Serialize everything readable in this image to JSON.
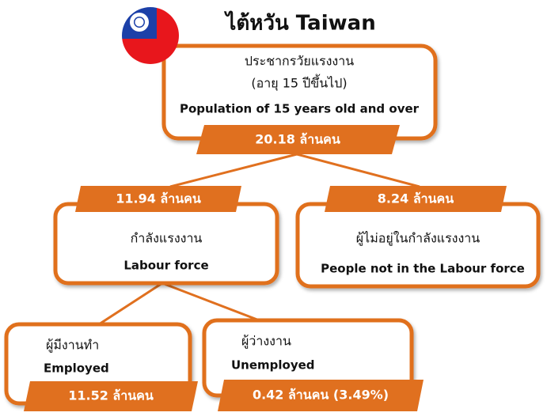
{
  "title": "ไต้หวัน Taiwan",
  "nodes": [
    {
      "th": "ประชากรวัยแรงงาน",
      "sub": "(อายุ 15 ปีขึ้นไป)",
      "en": "Population of 15 years old and over",
      "value": "20.18 ล้านคน"
    },
    {
      "th": "กำลังแรงงาน",
      "en": "Labour force",
      "value": "11.94 ล้านคน"
    },
    {
      "th": "ผู้ไม่อยู่ในกำลังแรงงาน",
      "en": "People not in the Labour force",
      "value": "8.24 ล้านคน"
    },
    {
      "th": "ผู้มีงานทำ",
      "en": "Employed",
      "value": "11.52 ล้านคน"
    },
    {
      "th": "ผู้ว่างงาน",
      "en": "Unemployed",
      "value": "0.42 ล้านคน (3.49%)"
    }
  ]
}
